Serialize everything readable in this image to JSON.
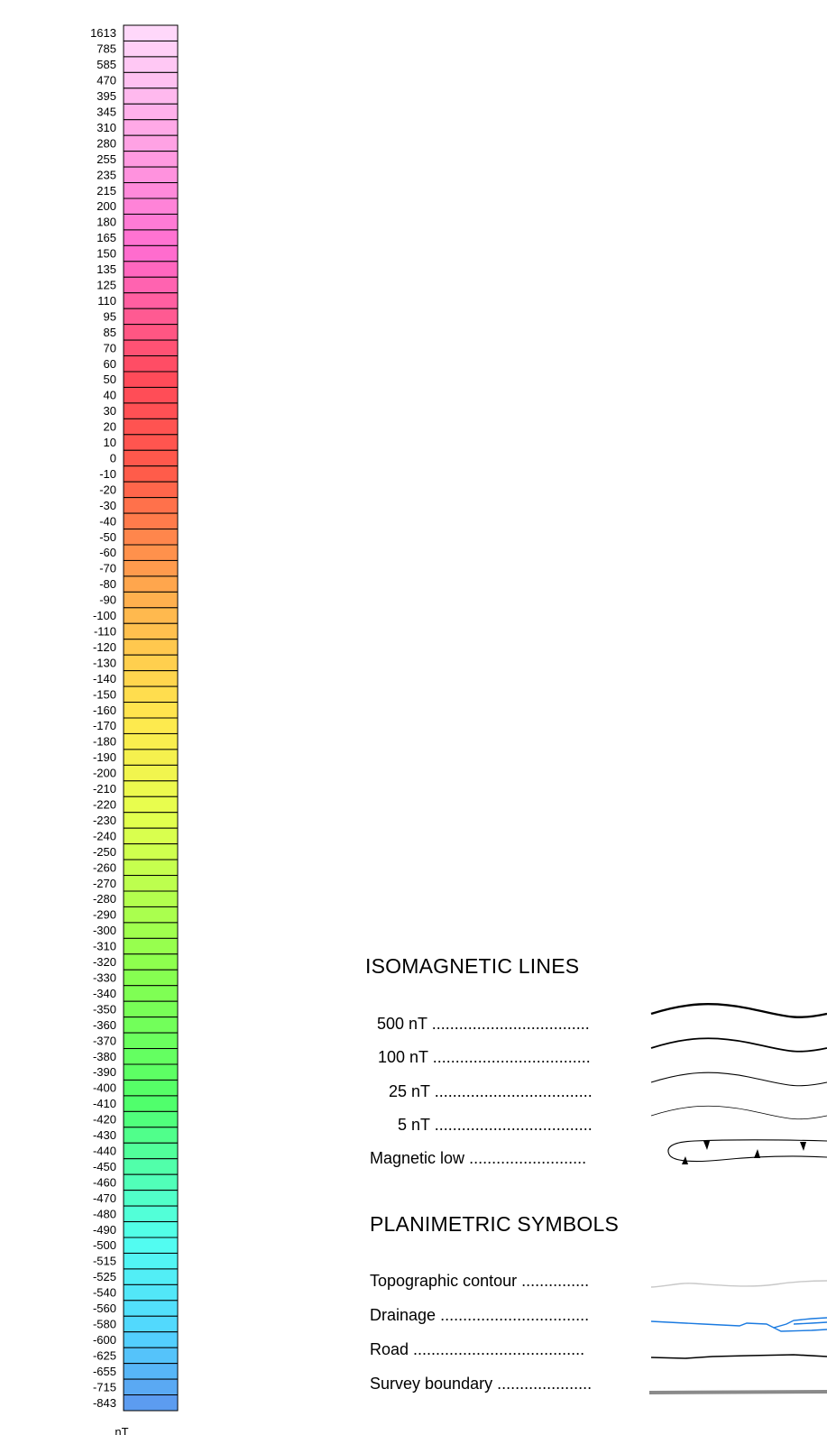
{
  "color_scale": {
    "unit": "nT",
    "levels": [
      "1613",
      "785",
      "585",
      "470",
      "395",
      "345",
      "310",
      "280",
      "255",
      "235",
      "215",
      "200",
      "180",
      "165",
      "150",
      "135",
      "125",
      "110",
      "95",
      "85",
      "70",
      "60",
      "50",
      "40",
      "30",
      "20",
      "10",
      "0",
      "-10",
      "-20",
      "-30",
      "-40",
      "-50",
      "-60",
      "-70",
      "-80",
      "-90",
      "-100",
      "-110",
      "-120",
      "-130",
      "-140",
      "-150",
      "-160",
      "-170",
      "-180",
      "-190",
      "-200",
      "-210",
      "-220",
      "-230",
      "-240",
      "-250",
      "-260",
      "-270",
      "-280",
      "-290",
      "-300",
      "-310",
      "-320",
      "-330",
      "-340",
      "-350",
      "-360",
      "-370",
      "-380",
      "-390",
      "-400",
      "-410",
      "-420",
      "-430",
      "-440",
      "-450",
      "-460",
      "-470",
      "-480",
      "-490",
      "-500",
      "-515",
      "-525",
      "-540",
      "-560",
      "-580",
      "-600",
      "-625",
      "-655",
      "-715",
      "-843"
    ],
    "color_stops": [
      {
        "t": 0.0,
        "color": "#ffd8fa"
      },
      {
        "t": 0.16,
        "color": "#ff6ccf"
      },
      {
        "t": 0.25,
        "color": "#ff4a5a"
      },
      {
        "t": 0.32,
        "color": "#ff5a4a"
      },
      {
        "t": 0.42,
        "color": "#ffb64e"
      },
      {
        "t": 0.5,
        "color": "#ffe84e"
      },
      {
        "t": 0.57,
        "color": "#e6ff4e"
      },
      {
        "t": 0.68,
        "color": "#8cff4e"
      },
      {
        "t": 0.78,
        "color": "#50ff6a"
      },
      {
        "t": 0.88,
        "color": "#52fff0"
      },
      {
        "t": 0.95,
        "color": "#52d4ff"
      },
      {
        "t": 1.0,
        "color": "#5c9cf0"
      }
    ]
  },
  "isomagnetic": {
    "title": "ISOMAGNETIC LINES",
    "items": [
      {
        "label": "500 nT",
        "leader": "...................................",
        "symbol": "line",
        "stroke": "#000000",
        "weight": "heavy"
      },
      {
        "label": "100 nT",
        "leader": "...................................",
        "symbol": "line",
        "stroke": "#000000",
        "weight": "medium"
      },
      {
        "label": "25 nT",
        "leader": "...................................",
        "symbol": "line",
        "stroke": "#000000",
        "weight": "thin"
      },
      {
        "label": "5 nT",
        "leader": "...................................",
        "symbol": "line",
        "stroke": "#000000",
        "weight": "hair"
      },
      {
        "label": "Magnetic low",
        "leader": "..........................",
        "symbol": "closed-low",
        "stroke": "#000000",
        "weight": "thin"
      }
    ]
  },
  "planimetric": {
    "title": "PLANIMETRIC SYMBOLS",
    "items": [
      {
        "label": "Topographic contour",
        "leader": "...............",
        "symbol": "contour",
        "stroke": "#c8c8c8"
      },
      {
        "label": "Drainage",
        "leader": ".................................",
        "symbol": "drainage",
        "stroke": "#1a7ae0"
      },
      {
        "label": "Road",
        "leader": "......................................",
        "symbol": "road",
        "stroke": "#000000"
      },
      {
        "label": "Survey boundary",
        "leader": ".....................",
        "symbol": "boundary",
        "stroke": "#8a8a8a"
      }
    ]
  }
}
